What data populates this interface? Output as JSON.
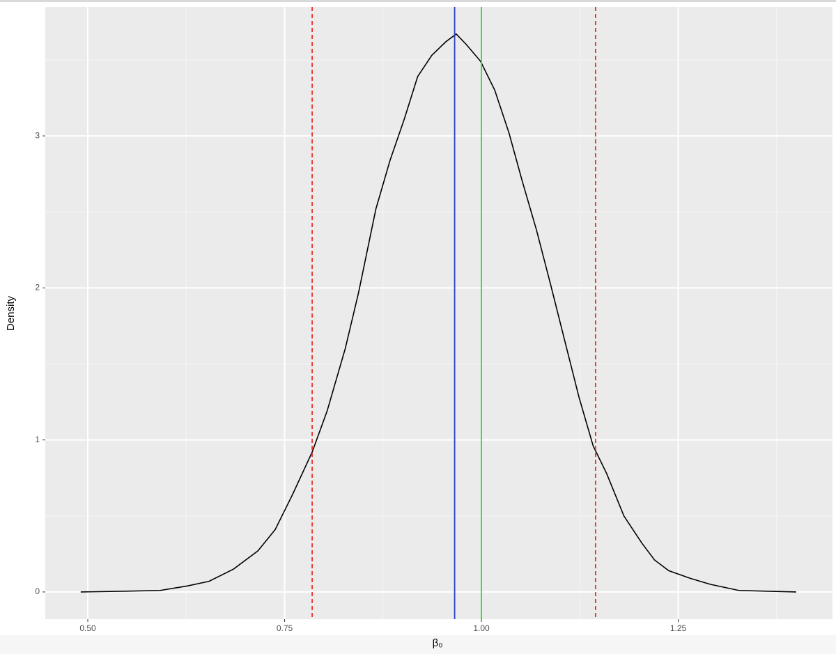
{
  "chart_data": {
    "type": "density",
    "x_label": "β₀",
    "y_label": "Density",
    "x": [
      0.491,
      0.548,
      0.592,
      0.627,
      0.654,
      0.685,
      0.716,
      0.738,
      0.76,
      0.785,
      0.804,
      0.827,
      0.844,
      0.866,
      0.884,
      0.902,
      0.919,
      0.937,
      0.955,
      0.968,
      0.981,
      0.999,
      1.017,
      1.035,
      1.052,
      1.07,
      1.088,
      1.106,
      1.124,
      1.142,
      1.159,
      1.181,
      1.204,
      1.22,
      1.238,
      1.265,
      1.291,
      1.327,
      1.362,
      1.4
    ],
    "values": [
      0,
      0.005,
      0.01,
      0.04,
      0.07,
      0.15,
      0.27,
      0.41,
      0.64,
      0.92,
      1.19,
      1.6,
      1.97,
      2.52,
      2.84,
      3.11,
      3.39,
      3.53,
      3.62,
      3.67,
      3.6,
      3.49,
      3.3,
      3.02,
      2.7,
      2.38,
      2.02,
      1.65,
      1.28,
      0.96,
      0.78,
      0.5,
      0.32,
      0.21,
      0.14,
      0.09,
      0.05,
      0.01,
      0.005,
      0
    ],
    "color": "#000000",
    "vlines": [
      {
        "value": 0.785,
        "color": "#e8352a",
        "dashed": true
      },
      {
        "value": 1.145,
        "color": "#e8352a",
        "dashed": true
      },
      {
        "value": 0.966,
        "color": "#2a3fbf",
        "dashed": false
      },
      {
        "value": 1.0,
        "color": "#22e21a",
        "dashed": false
      }
    ],
    "xlim": [
      0.446,
      1.446
    ],
    "ylim": [
      -0.179,
      3.848
    ],
    "xticks": [
      {
        "value": 0.5,
        "label": "0.50"
      },
      {
        "value": 0.75,
        "label": "0.75"
      },
      {
        "value": 1.0,
        "label": "1.00"
      },
      {
        "value": 1.25,
        "label": "1.25"
      }
    ],
    "yticks": [
      0,
      1,
      2,
      3
    ],
    "grid": true
  }
}
